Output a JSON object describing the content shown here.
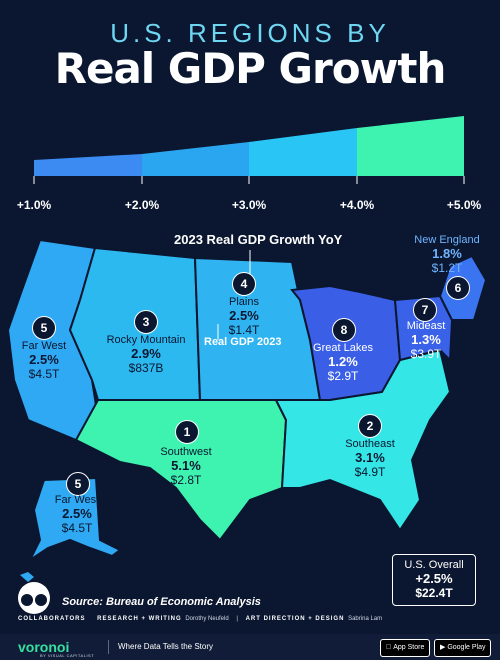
{
  "header": {
    "supertitle": "U.S. REGIONS BY",
    "title": "Real GDP Growth"
  },
  "legend": {
    "colors": [
      "#3b8bf2",
      "#2aa6f0",
      "#29c6f5",
      "#2ce0d6",
      "#3ef2b0"
    ],
    "ticks": [
      "+1.0%",
      "+2.0%",
      "+3.0%",
      "+4.0%",
      "+5.0%"
    ]
  },
  "map": {
    "callout_title": "2023 Real GDP Growth YoY",
    "callout_gdp": "Real GDP 2023",
    "regions": [
      {
        "id": "1",
        "name": "Southwest",
        "growth": "5.1%",
        "gdp": "$2.8T",
        "growth_value": 5.1,
        "color": "#3ef2b0"
      },
      {
        "id": "2",
        "name": "Southeast",
        "growth": "3.1%",
        "gdp": "$4.9T",
        "growth_value": 3.1,
        "color": "#35e6e6"
      },
      {
        "id": "3",
        "name": "Rocky Mountain",
        "growth": "2.9%",
        "gdp": "$837B",
        "growth_value": 2.9,
        "color": "#2bb9f0"
      },
      {
        "id": "4",
        "name": "Plains",
        "growth": "2.5%",
        "gdp": "$1.4T",
        "growth_value": 2.5,
        "color": "#2fb4f1"
      },
      {
        "id": "5",
        "name": "Far West",
        "growth": "2.5%",
        "gdp": "$4.5T",
        "growth_value": 2.5,
        "color": "#2fa9f3"
      },
      {
        "id": "5",
        "name": "Far West",
        "growth": "2.5%",
        "gdp": "$4.5T",
        "growth_value": 2.5,
        "color": "#2fa9f3"
      },
      {
        "id": "6",
        "name": "New England",
        "growth": "1.8%",
        "gdp": "$1.2T",
        "growth_value": 1.8,
        "color": "#3b74f0"
      },
      {
        "id": "7",
        "name": "Mideast",
        "growth": "1.3%",
        "gdp": "$3.9T",
        "growth_value": 1.3,
        "color": "#3a62e8"
      },
      {
        "id": "8",
        "name": "Great Lakes",
        "growth": "1.2%",
        "gdp": "$2.9T",
        "growth_value": 1.2,
        "color": "#3a5fe6"
      }
    ],
    "overall": {
      "name": "U.S. Overall",
      "growth": "+2.5%",
      "gdp": "$22.4T"
    }
  },
  "source": "Source: Bureau of Economic Analysis",
  "collaborators": {
    "label": "COLLABORATORS",
    "research_label": "RESEARCH + WRITING",
    "research_name": "Dorothy Neufeld",
    "design_label": "ART DIRECTION + DESIGN",
    "design_name": "Sabrina Lam"
  },
  "footer": {
    "brand": "voronoi",
    "brand_sub": "BY VISUAL CAPITALIST",
    "tagline": "Where Data Tells the Story",
    "app_store": "App Store",
    "google_play": "Google Play"
  }
}
